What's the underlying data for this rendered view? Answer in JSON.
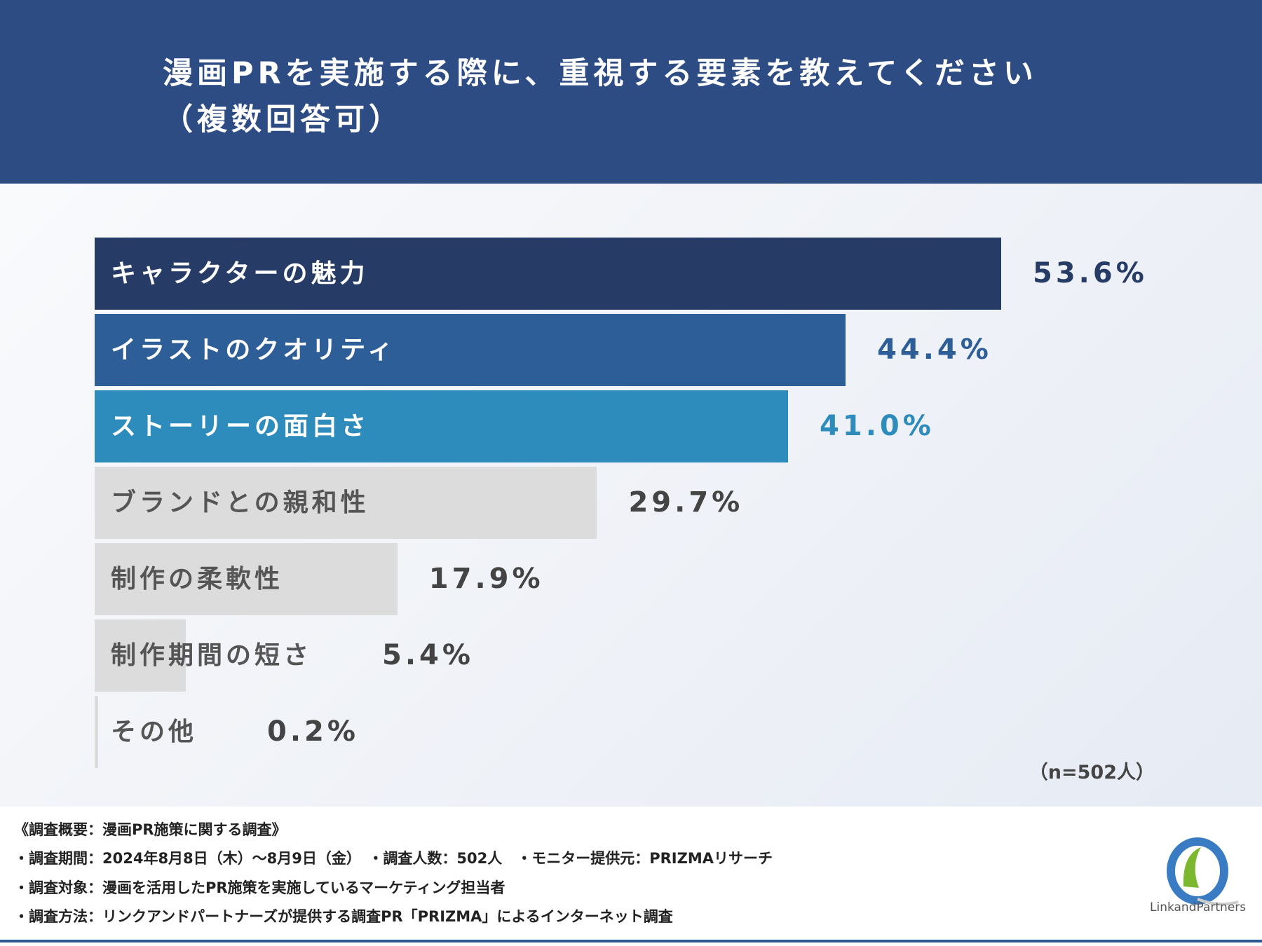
{
  "chart_data": {
    "type": "bar",
    "orientation": "horizontal",
    "title": "漫画PRを実施する際に、重視する要素を教えてください\n（複数回答可）",
    "categories": [
      "キャラクターの魅力",
      "イラストのクオリティ",
      "ストーリーの面白さ",
      "ブランドとの親和性",
      "制作の柔軟性",
      "制作期間の短さ",
      "その他"
    ],
    "values": [
      53.6,
      44.4,
      41.0,
      29.7,
      17.9,
      5.4,
      0.2
    ],
    "value_labels": [
      "53.6%",
      "44.4%",
      "41.0%",
      "29.7%",
      "17.9%",
      "5.4%",
      "0.2%"
    ],
    "bar_colors": [
      "#263c66",
      "#2d5e97",
      "#2e8cbd",
      "#dcdcdc",
      "#dcdcdc",
      "#dcdcdc",
      "#dcdcdc"
    ],
    "label_colors": [
      "#ffffff",
      "#ffffff",
      "#ffffff",
      "#555555",
      "#555555",
      "#555555",
      "#555555"
    ],
    "value_colors": [
      "#263c66",
      "#2d5e97",
      "#2e8cbd",
      "#444444",
      "#444444",
      "#444444",
      "#444444"
    ],
    "xlim": [
      0,
      53.6
    ],
    "grid": false,
    "note": "（n=502人）"
  },
  "footer": {
    "lines": [
      "《調査概要：漫画PR施策に関する調査》",
      "・調査期間：2024年8月8日（木）～8月9日（金）　・調査人数：502人　・モニター提供元：PRIZMAリサーチ",
      "・調査対象：漫画を活用したPR施策を実施しているマーケティング担当者",
      "・調査方法：リンクアンドパートナーズが提供する調査PR「PRIZMA」によるインターネット調査"
    ],
    "logo_text": "LinkandPartners"
  }
}
